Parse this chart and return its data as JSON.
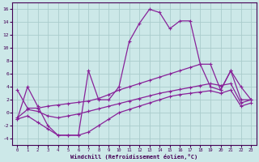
{
  "xlabel": "Windchill (Refroidissement éolien,°C)",
  "background_color": "#cce8e8",
  "grid_color": "#aacccc",
  "line_color": "#882299",
  "xlim": [
    -0.5,
    23.5
  ],
  "ylim": [
    -5,
    17
  ],
  "xticks": [
    0,
    1,
    2,
    3,
    4,
    5,
    6,
    7,
    8,
    9,
    10,
    11,
    12,
    13,
    14,
    15,
    16,
    17,
    18,
    19,
    20,
    21,
    22,
    23
  ],
  "yticks": [
    -4,
    -2,
    0,
    2,
    4,
    6,
    8,
    10,
    12,
    14,
    16
  ],
  "series1_x": [
    0,
    1,
    2,
    3,
    4,
    5,
    6,
    7,
    8,
    9,
    10,
    11,
    12,
    13,
    14,
    15,
    16,
    17,
    18,
    19,
    20,
    21,
    22,
    23
  ],
  "series1_y": [
    -1.0,
    4.0,
    1.0,
    -2.0,
    -3.5,
    -3.5,
    -3.5,
    6.5,
    2.0,
    2.0,
    4.0,
    11.0,
    13.8,
    16.0,
    15.5,
    13.0,
    14.2,
    14.2,
    7.5,
    4.0,
    3.5,
    6.5,
    2.0,
    2.0
  ],
  "series2_x": [
    0,
    1,
    2,
    3,
    4,
    5,
    6,
    7,
    8,
    9,
    10,
    11,
    12,
    13,
    14,
    15,
    16,
    17,
    18,
    19,
    20,
    21,
    22,
    23
  ],
  "series2_y": [
    3.5,
    0.7,
    0.7,
    1.0,
    1.2,
    1.4,
    1.6,
    1.8,
    2.2,
    2.8,
    3.5,
    4.0,
    4.5,
    5.0,
    5.5,
    6.0,
    6.5,
    7.0,
    7.5,
    7.5,
    3.5,
    6.5,
    4.0,
    2.0
  ],
  "series3_x": [
    0,
    1,
    2,
    3,
    4,
    5,
    6,
    7,
    8,
    9,
    10,
    11,
    12,
    13,
    14,
    15,
    16,
    17,
    18,
    19,
    20,
    21,
    22,
    23
  ],
  "series3_y": [
    -0.8,
    0.5,
    0.2,
    -0.5,
    -0.8,
    -0.5,
    -0.2,
    0.2,
    0.6,
    1.0,
    1.4,
    1.8,
    2.2,
    2.6,
    3.0,
    3.3,
    3.6,
    3.9,
    4.2,
    4.5,
    4.2,
    4.5,
    1.5,
    2.0
  ],
  "series4_x": [
    0,
    1,
    2,
    3,
    4,
    5,
    6,
    7,
    8,
    9,
    10,
    11,
    12,
    13,
    14,
    15,
    16,
    17,
    18,
    19,
    20,
    21,
    22,
    23
  ],
  "series4_y": [
    -1.0,
    -0.5,
    -1.5,
    -2.5,
    -3.5,
    -3.5,
    -3.5,
    -3.0,
    -2.0,
    -1.0,
    0.0,
    0.5,
    1.0,
    1.5,
    2.0,
    2.5,
    2.8,
    3.0,
    3.2,
    3.4,
    3.0,
    3.5,
    1.0,
    1.5
  ]
}
